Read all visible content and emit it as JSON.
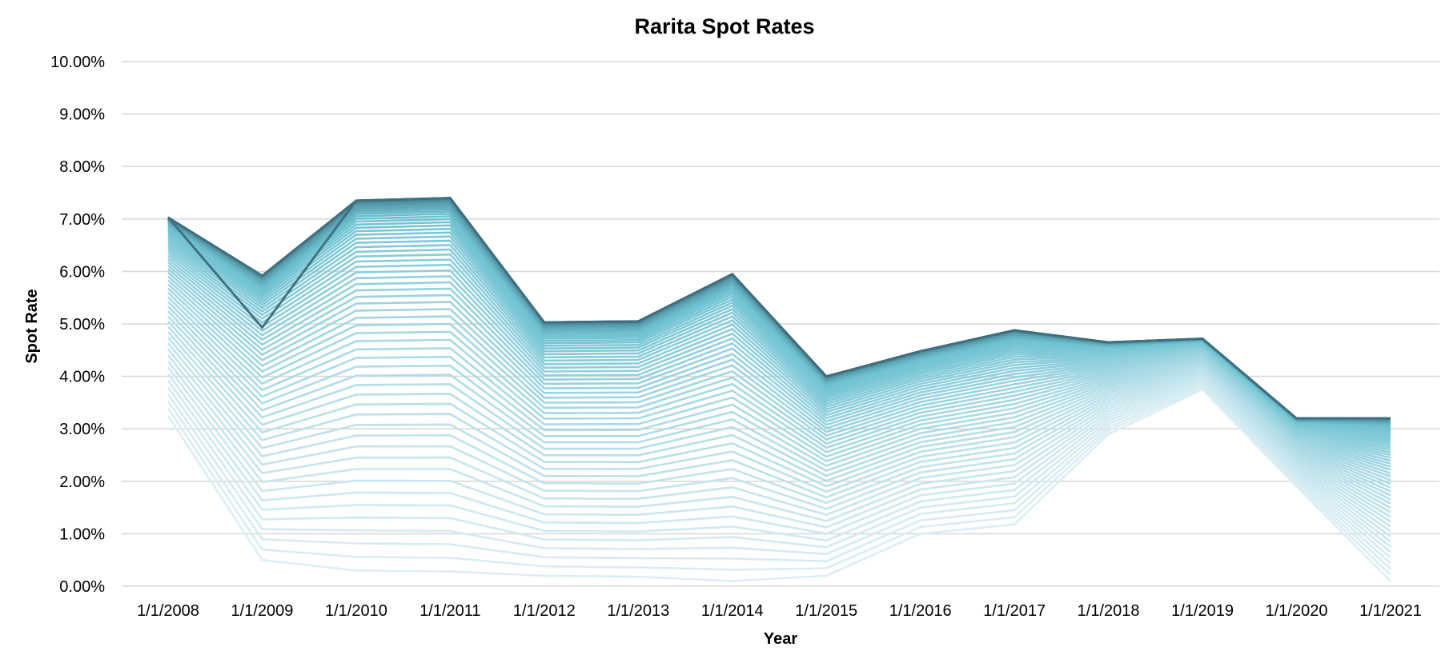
{
  "chart_data": {
    "type": "line",
    "title": "Rarita Spot Rates",
    "xlabel": "Year",
    "ylabel": "Spot Rate",
    "ylim": [
      0,
      0.1
    ],
    "y_tick_step": 0.01,
    "y_tick_labels": [
      "0.00%",
      "1.00%",
      "2.00%",
      "3.00%",
      "4.00%",
      "5.00%",
      "6.00%",
      "7.00%",
      "8.00%",
      "9.00%",
      "10.00%"
    ],
    "grid": true,
    "legend": "none",
    "categories": [
      "1/1/2008",
      "1/1/2009",
      "1/1/2010",
      "1/1/2011",
      "1/1/2012",
      "1/1/2013",
      "1/1/2014",
      "1/1/2015",
      "1/1/2016",
      "1/1/2017",
      "1/1/2018",
      "1/1/2019",
      "1/1/2020",
      "1/1/2021"
    ],
    "series_count": 60,
    "series_first_values": [
      0.0325,
      0.005,
      0.003,
      0.0028,
      0.002,
      0.0018,
      0.001,
      0.002,
      0.01,
      0.0118,
      0.029,
      0.0375,
      0.019,
      0.001
    ],
    "series_last_values": [
      0.0703,
      0.0592,
      0.0735,
      0.074,
      0.0503,
      0.0505,
      0.0595,
      0.04,
      0.0448,
      0.0488,
      0.0465,
      0.0472,
      0.032,
      0.032
    ],
    "highlighted_series_values": [
      0.0703,
      0.0493,
      0.0735,
      0.074,
      0.0503,
      0.0505,
      0.0595,
      0.04,
      0.0448,
      0.0488,
      0.0465,
      0.0472,
      0.032,
      0.032
    ],
    "colors": {
      "series_light": "#dceef4",
      "series_mid": "#6ec2d2",
      "series_dark": "#3f6f7e",
      "grid": "#d9d9d9"
    }
  }
}
